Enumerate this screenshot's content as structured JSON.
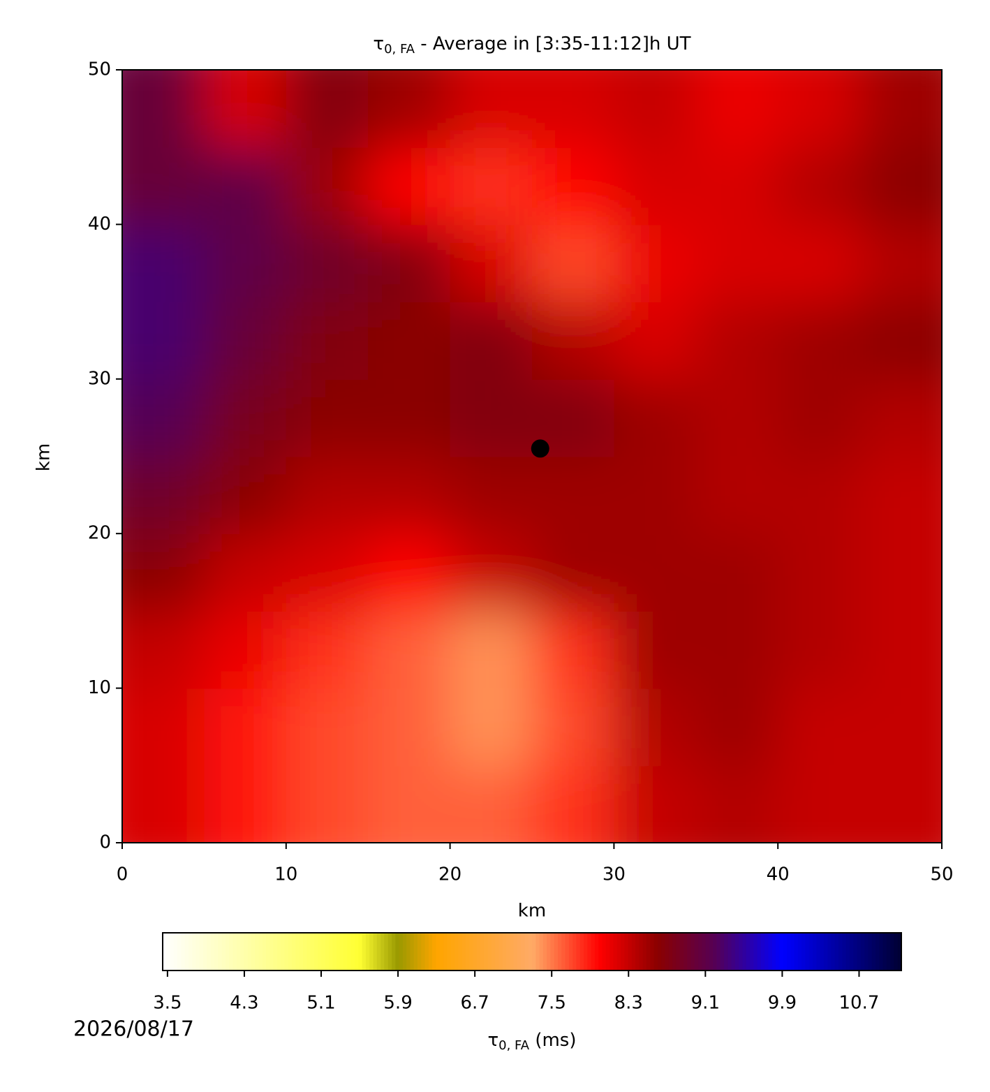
{
  "chart_data": {
    "type": "heatmap",
    "title_symbol": "τ",
    "title_subscript": "0, FA",
    "title_rest": " - Average in [3:35-11:12]h UT",
    "xlabel": "km",
    "ylabel": "km",
    "xlim": [
      0,
      50
    ],
    "ylim": [
      0,
      50
    ],
    "xticks": [
      0,
      10,
      20,
      30,
      40,
      50
    ],
    "yticks": [
      0,
      10,
      20,
      30,
      40,
      50
    ],
    "xbins": [
      0,
      5,
      10,
      15,
      20,
      25,
      30,
      35,
      40,
      45,
      50
    ],
    "ybins": [
      0,
      5,
      10,
      15,
      20,
      25,
      30,
      35,
      40,
      45,
      50
    ],
    "z": [
      [
        8.2,
        7.9,
        7.7,
        7.6,
        7.6,
        7.8,
        8.3,
        8.4,
        8.3,
        8.3
      ],
      [
        8.2,
        7.9,
        7.7,
        7.6,
        7.4,
        7.7,
        8.4,
        8.5,
        8.3,
        8.3
      ],
      [
        8.3,
        8.1,
        7.8,
        7.6,
        7.4,
        7.8,
        8.5,
        8.5,
        8.4,
        8.3
      ],
      [
        8.6,
        8.3,
        8.2,
        8.0,
        8.3,
        8.5,
        8.5,
        8.5,
        8.4,
        8.3
      ],
      [
        8.9,
        8.6,
        8.4,
        8.4,
        8.5,
        8.5,
        8.5,
        8.4,
        8.4,
        8.3
      ],
      [
        9.2,
        8.8,
        8.6,
        8.6,
        8.7,
        8.7,
        8.5,
        8.4,
        8.5,
        8.4
      ],
      [
        9.3,
        9.0,
        8.7,
        8.6,
        8.7,
        8.4,
        8.2,
        8.4,
        8.5,
        8.6
      ],
      [
        9.3,
        9.1,
        8.9,
        8.7,
        8.2,
        7.7,
        8.1,
        8.2,
        8.2,
        8.4
      ],
      [
        9.0,
        9.1,
        8.5,
        8.0,
        7.8,
        8.0,
        8.2,
        8.2,
        8.4,
        8.6
      ],
      [
        9.0,
        8.2,
        8.7,
        8.5,
        8.2,
        8.2,
        8.3,
        8.1,
        8.2,
        8.5
      ]
    ],
    "marker": {
      "x": 25.5,
      "y": 25.5,
      "color": "#000000"
    },
    "colormap": [
      [
        3.45,
        "#ffffff"
      ],
      [
        5.5,
        "#ffff33"
      ],
      [
        5.9,
        "#999900"
      ],
      [
        6.3,
        "#ffa500"
      ],
      [
        7.3,
        "#ffaa66"
      ],
      [
        8.0,
        "#ff0000"
      ],
      [
        8.6,
        "#8b0000"
      ],
      [
        9.2,
        "#550055"
      ],
      [
        9.9,
        "#0000ff"
      ],
      [
        11.14,
        "#000033"
      ]
    ],
    "clim": [
      3.45,
      11.14
    ],
    "cticks": [
      3.5,
      4.3,
      5.1,
      5.9,
      6.7,
      7.5,
      8.3,
      9.1,
      9.9,
      10.7
    ],
    "clabel_symbol": "τ",
    "clabel_subscript": "0, FA",
    "clabel_rest": " (ms)",
    "date": "2026/08/17"
  }
}
